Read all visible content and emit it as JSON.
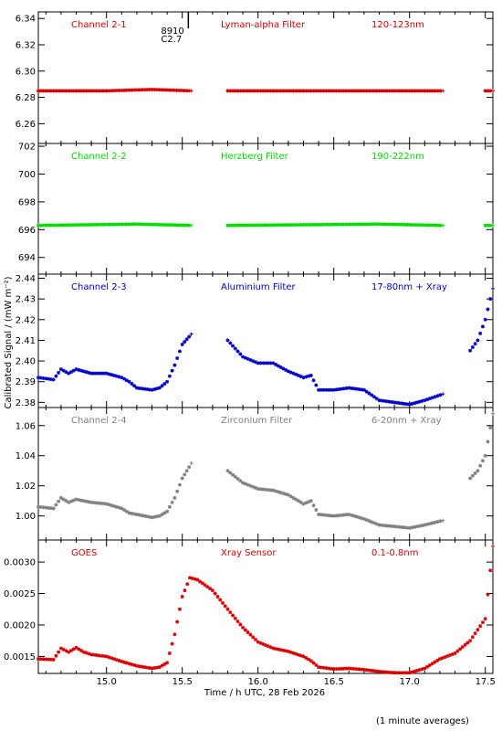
{
  "chart_data": {
    "type": "scatter",
    "ylabel": "Calibrated Signal / (mW m⁻²)",
    "xlabel": "Time / h UTC, 28 Feb 2026",
    "footnote": "(1 minute averages)",
    "xlim": [
      14.55,
      17.55
    ],
    "x_ticks": [
      15.0,
      15.5,
      16.0,
      16.5,
      17.0,
      17.5
    ],
    "x_tick_labels": [
      "15.0",
      "15.5",
      "16.0",
      "16.5",
      "17.0",
      "17.5"
    ],
    "event_marker": {
      "x": 15.54,
      "label_line1": "8910",
      "label_line2": "C2.7"
    },
    "panels": [
      {
        "channel": "Channel 2-1",
        "filter": "Lyman-alpha Filter",
        "band": "120-123nm",
        "color": "#dd0000",
        "ylim": [
          6.245,
          6.345
        ],
        "yticks": [
          "6.26",
          "6.28",
          "6.30",
          "6.32",
          "6.34"
        ],
        "segments": [
          {
            "x": [
              14.55,
              15.0,
              15.3,
              15.56
            ],
            "y": [
              6.285,
              6.285,
              6.286,
              6.285
            ]
          },
          {
            "x": [
              15.8,
              16.3,
              17.0,
              17.22
            ],
            "y": [
              6.285,
              6.285,
              6.285,
              6.285
            ]
          },
          {
            "x": [
              17.5,
              17.55
            ],
            "y": [
              6.285,
              6.285
            ]
          }
        ]
      },
      {
        "channel": "Channel 2-2",
        "filter": "Herzberg Filter",
        "band": "190-222nm",
        "color": "#00dd00",
        "ylim": [
          692.8,
          702.2
        ],
        "yticks": [
          "694",
          "696",
          "698",
          "700",
          "702"
        ],
        "segments": [
          {
            "x": [
              14.55,
              15.2,
              15.56
            ],
            "y": [
              696.3,
              696.4,
              696.3
            ]
          },
          {
            "x": [
              15.8,
              16.8,
              17.22
            ],
            "y": [
              696.3,
              696.4,
              696.3
            ]
          },
          {
            "x": [
              17.5,
              17.55
            ],
            "y": [
              696.3,
              696.3
            ]
          }
        ]
      },
      {
        "channel": "Channel 2-3",
        "filter": "Aluminium Filter",
        "band": "17-80nm + Xray",
        "color": "#0000cc",
        "ylim": [
          2.3775,
          2.442
        ],
        "yticks": [
          "2.38",
          "2.39",
          "2.40",
          "2.41",
          "2.42",
          "2.43",
          "2.44"
        ],
        "segments": [
          {
            "x": [
              14.55,
              14.65,
              14.7,
              14.75,
              14.8,
              14.85,
              14.9,
              15.0,
              15.1,
              15.15,
              15.2,
              15.3,
              15.35,
              15.4,
              15.45,
              15.5,
              15.56
            ],
            "y": [
              2.392,
              2.391,
              2.396,
              2.394,
              2.396,
              2.395,
              2.394,
              2.394,
              2.392,
              2.39,
              2.387,
              2.386,
              2.387,
              2.39,
              2.398,
              2.408,
              2.413
            ]
          },
          {
            "x": [
              15.8,
              15.85,
              15.9,
              16.0,
              16.1,
              16.15,
              16.2,
              16.3,
              16.35,
              16.4,
              16.5,
              16.6,
              16.7,
              16.8,
              16.9,
              17.0,
              17.1,
              17.22
            ],
            "y": [
              2.41,
              2.406,
              2.402,
              2.399,
              2.399,
              2.397,
              2.395,
              2.392,
              2.393,
              2.386,
              2.386,
              2.387,
              2.386,
              2.381,
              2.38,
              2.379,
              2.381,
              2.384
            ]
          },
          {
            "x": [
              17.4,
              17.45,
              17.5,
              17.55
            ],
            "y": [
              2.405,
              2.41,
              2.42,
              2.435
            ]
          }
        ]
      },
      {
        "channel": "Channel 2-4",
        "filter": "Zirconium Filter",
        "band": "6-20nm + Xray",
        "color": "#808080",
        "ylim": [
          0.984,
          1.072
        ],
        "yticks": [
          "1.00",
          "1.02",
          "1.04",
          "1.06"
        ],
        "segments": [
          {
            "x": [
              14.55,
              14.65,
              14.7,
              14.75,
              14.8,
              14.9,
              15.0,
              15.1,
              15.15,
              15.2,
              15.3,
              15.35,
              15.4,
              15.45,
              15.5,
              15.56
            ],
            "y": [
              1.006,
              1.005,
              1.012,
              1.009,
              1.011,
              1.009,
              1.008,
              1.005,
              1.002,
              1.001,
              0.999,
              1.0,
              1.003,
              1.012,
              1.025,
              1.035
            ]
          },
          {
            "x": [
              15.8,
              15.9,
              16.0,
              16.1,
              16.2,
              16.3,
              16.35,
              16.4,
              16.5,
              16.6,
              16.7,
              16.8,
              16.9,
              17.0,
              17.1,
              17.22
            ],
            "y": [
              1.03,
              1.022,
              1.018,
              1.017,
              1.014,
              1.008,
              1.01,
              1.001,
              1.0,
              1.001,
              0.998,
              0.994,
              0.993,
              0.992,
              0.994,
              0.997
            ]
          },
          {
            "x": [
              17.4,
              17.45,
              17.5,
              17.55
            ],
            "y": [
              1.025,
              1.03,
              1.04,
              1.068
            ]
          }
        ]
      },
      {
        "channel": "GOES",
        "filter": "Xray Sensor",
        "band": "0.1-0.8nm",
        "color": "#dd0000",
        "ylim": [
          0.00123,
          0.00335
        ],
        "yticks": [
          "0.0015",
          "0.0020",
          "0.0025",
          "0.0030"
        ],
        "segments": [
          {
            "x": [
              14.55,
              14.65,
              14.7,
              14.75,
              14.8,
              14.85,
              14.9,
              15.0,
              15.1,
              15.2,
              15.3,
              15.35,
              15.4,
              15.45,
              15.5,
              15.55,
              15.6,
              15.7,
              15.8,
              15.9,
              16.0,
              16.1,
              16.2,
              16.3,
              16.35,
              16.4,
              16.5,
              16.6,
              16.7,
              16.8,
              16.9,
              17.0,
              17.1,
              17.2,
              17.3,
              17.4,
              17.5,
              17.55
            ],
            "y": [
              0.00146,
              0.00145,
              0.00163,
              0.00157,
              0.00164,
              0.00157,
              0.00153,
              0.0015,
              0.00142,
              0.00135,
              0.00131,
              0.00133,
              0.0014,
              0.00185,
              0.00245,
              0.00275,
              0.00272,
              0.00255,
              0.00225,
              0.00196,
              0.00173,
              0.00163,
              0.00158,
              0.0015,
              0.00143,
              0.00133,
              0.0013,
              0.00131,
              0.00129,
              0.00126,
              0.00124,
              0.00124,
              0.00131,
              0.00146,
              0.00155,
              0.00175,
              0.0021,
              0.00325
            ]
          }
        ]
      }
    ]
  }
}
